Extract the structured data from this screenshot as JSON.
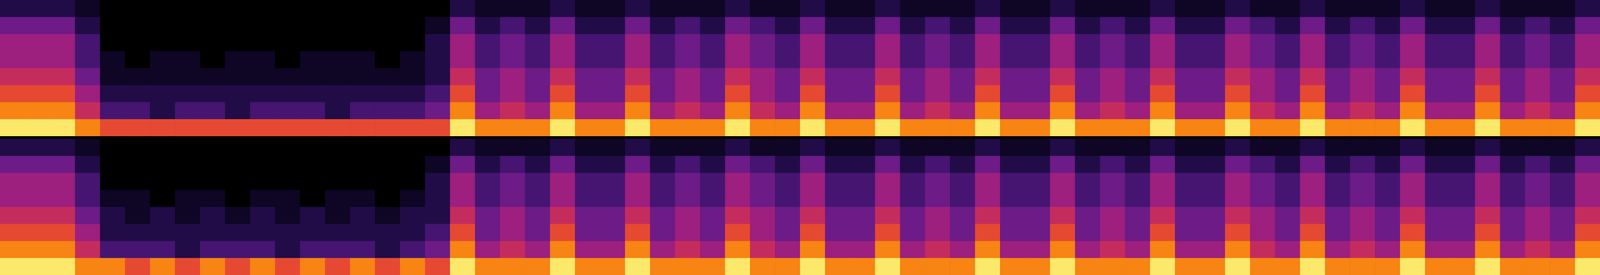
{
  "chart_data": [
    {
      "type": "heatmap",
      "tick_labels": false,
      "xlim": [
        0,
        64
      ],
      "ylim": [
        0,
        8
      ],
      "zlim": [
        0,
        9
      ],
      "cells": [
        [
          2,
          2,
          2,
          1,
          0,
          0,
          0,
          0,
          0,
          0,
          0,
          0,
          0,
          0,
          0,
          0,
          0,
          0,
          2,
          1,
          1,
          1,
          2,
          1,
          1,
          2,
          1,
          1,
          1,
          2,
          1,
          1,
          2,
          1,
          1,
          2,
          1,
          1,
          1,
          2,
          1,
          1,
          2,
          1,
          1,
          1,
          2,
          1,
          1,
          2,
          1,
          1,
          2,
          1,
          1,
          1,
          2,
          1,
          1,
          2,
          1,
          1,
          1,
          2
        ],
        [
          4,
          4,
          4,
          2,
          0,
          0,
          0,
          0,
          0,
          0,
          0,
          0,
          0,
          0,
          0,
          0,
          0,
          1,
          4,
          2,
          3,
          2,
          4,
          2,
          2,
          4,
          2,
          3,
          2,
          4,
          3,
          2,
          4,
          2,
          2,
          4,
          2,
          3,
          2,
          4,
          2,
          2,
          4,
          2,
          3,
          2,
          4,
          2,
          2,
          4,
          3,
          2,
          4,
          2,
          3,
          2,
          4,
          2,
          2,
          4,
          2,
          3,
          2,
          4
        ],
        [
          5,
          5,
          5,
          3,
          0,
          0,
          0,
          0,
          0,
          0,
          0,
          0,
          0,
          0,
          0,
          0,
          0,
          2,
          5,
          3,
          4,
          3,
          5,
          3,
          3,
          5,
          3,
          4,
          3,
          5,
          4,
          3,
          5,
          3,
          3,
          5,
          3,
          4,
          3,
          5,
          3,
          3,
          5,
          3,
          4,
          3,
          5,
          3,
          3,
          5,
          4,
          3,
          5,
          3,
          4,
          3,
          5,
          3,
          3,
          5,
          3,
          4,
          3,
          5
        ],
        [
          5,
          5,
          5,
          3,
          1,
          0,
          1,
          1,
          0,
          1,
          1,
          0,
          1,
          1,
          1,
          0,
          1,
          2,
          5,
          3,
          4,
          3,
          5,
          3,
          3,
          5,
          3,
          4,
          3,
          5,
          4,
          3,
          5,
          3,
          3,
          5,
          3,
          4,
          3,
          5,
          3,
          3,
          5,
          3,
          4,
          3,
          5,
          3,
          3,
          5,
          4,
          3,
          5,
          3,
          4,
          3,
          5,
          3,
          3,
          5,
          3,
          4,
          3,
          5
        ],
        [
          6,
          6,
          6,
          4,
          1,
          1,
          1,
          1,
          1,
          1,
          1,
          1,
          1,
          1,
          1,
          1,
          1,
          2,
          6,
          4,
          5,
          4,
          6,
          4,
          4,
          6,
          4,
          5,
          4,
          6,
          5,
          4,
          6,
          4,
          4,
          6,
          4,
          5,
          4,
          6,
          4,
          4,
          6,
          4,
          5,
          4,
          6,
          4,
          4,
          6,
          5,
          4,
          6,
          4,
          5,
          4,
          6,
          4,
          4,
          6,
          4,
          5,
          4,
          6
        ],
        [
          7,
          7,
          7,
          5,
          2,
          2,
          2,
          2,
          2,
          2,
          2,
          2,
          2,
          2,
          2,
          2,
          2,
          3,
          7,
          4,
          5,
          4,
          7,
          4,
          4,
          7,
          4,
          5,
          4,
          7,
          5,
          4,
          7,
          4,
          4,
          7,
          4,
          5,
          4,
          7,
          4,
          4,
          7,
          4,
          5,
          4,
          7,
          4,
          4,
          7,
          5,
          4,
          7,
          4,
          5,
          4,
          7,
          4,
          4,
          7,
          4,
          5,
          4,
          7
        ],
        [
          8,
          8,
          8,
          6,
          3,
          3,
          2,
          3,
          3,
          2,
          3,
          3,
          3,
          2,
          3,
          3,
          3,
          4,
          8,
          5,
          6,
          5,
          8,
          5,
          5,
          8,
          5,
          6,
          5,
          8,
          6,
          5,
          8,
          5,
          5,
          8,
          5,
          6,
          5,
          8,
          5,
          5,
          8,
          5,
          6,
          5,
          8,
          5,
          5,
          8,
          6,
          5,
          8,
          5,
          6,
          5,
          8,
          5,
          5,
          8,
          5,
          6,
          5,
          8
        ],
        [
          9,
          9,
          9,
          8,
          7,
          7,
          7,
          7,
          7,
          7,
          7,
          7,
          7,
          7,
          7,
          7,
          7,
          7,
          9,
          8,
          8,
          8,
          9,
          8,
          8,
          9,
          8,
          8,
          8,
          9,
          8,
          8,
          9,
          8,
          8,
          9,
          8,
          8,
          8,
          9,
          8,
          8,
          9,
          8,
          8,
          8,
          9,
          8,
          8,
          9,
          8,
          8,
          9,
          8,
          8,
          8,
          9,
          8,
          8,
          9,
          8,
          8,
          8,
          9
        ]
      ]
    },
    {
      "type": "heatmap",
      "tick_labels": false,
      "xlim": [
        0,
        64
      ],
      "ylim": [
        0,
        8
      ],
      "zlim": [
        0,
        9
      ],
      "cells": [
        [
          2,
          2,
          2,
          1,
          0,
          0,
          0,
          0,
          0,
          0,
          0,
          0,
          0,
          0,
          0,
          0,
          0,
          0,
          2,
          1,
          1,
          1,
          2,
          1,
          1,
          2,
          1,
          1,
          1,
          2,
          1,
          1,
          2,
          1,
          1,
          2,
          1,
          1,
          1,
          2,
          1,
          1,
          2,
          1,
          1,
          1,
          2,
          1,
          1,
          2,
          1,
          1,
          2,
          1,
          1,
          1,
          2,
          1,
          1,
          2,
          1,
          1,
          1,
          2
        ],
        [
          4,
          4,
          4,
          2,
          0,
          0,
          0,
          0,
          0,
          0,
          0,
          0,
          0,
          0,
          0,
          0,
          0,
          1,
          4,
          2,
          3,
          2,
          4,
          2,
          2,
          4,
          2,
          3,
          2,
          4,
          3,
          2,
          4,
          2,
          2,
          4,
          2,
          3,
          2,
          4,
          2,
          2,
          4,
          2,
          3,
          2,
          4,
          2,
          2,
          4,
          3,
          2,
          4,
          2,
          3,
          2,
          4,
          2,
          2,
          4,
          2,
          3,
          2,
          4
        ],
        [
          5,
          5,
          5,
          3,
          0,
          0,
          0,
          0,
          0,
          0,
          0,
          0,
          0,
          0,
          0,
          0,
          0,
          2,
          5,
          3,
          4,
          3,
          5,
          3,
          3,
          5,
          3,
          4,
          3,
          5,
          4,
          3,
          5,
          3,
          3,
          5,
          3,
          4,
          3,
          5,
          3,
          3,
          5,
          3,
          4,
          3,
          5,
          3,
          3,
          5,
          4,
          3,
          5,
          3,
          4,
          3,
          5,
          3,
          3,
          5,
          3,
          4,
          3,
          5
        ],
        [
          5,
          5,
          5,
          3,
          1,
          1,
          0,
          1,
          1,
          0,
          1,
          1,
          0,
          1,
          1,
          0,
          1,
          2,
          5,
          3,
          4,
          3,
          5,
          3,
          3,
          5,
          3,
          4,
          3,
          5,
          4,
          3,
          5,
          3,
          3,
          5,
          3,
          4,
          3,
          5,
          3,
          3,
          5,
          3,
          4,
          3,
          5,
          3,
          3,
          5,
          4,
          3,
          5,
          3,
          4,
          3,
          5,
          3,
          3,
          5,
          3,
          4,
          3,
          5
        ],
        [
          6,
          6,
          6,
          4,
          2,
          1,
          2,
          1,
          2,
          1,
          2,
          1,
          2,
          1,
          2,
          1,
          2,
          2,
          6,
          4,
          5,
          4,
          6,
          4,
          4,
          6,
          4,
          5,
          4,
          6,
          5,
          4,
          6,
          4,
          4,
          6,
          4,
          5,
          4,
          6,
          4,
          4,
          6,
          4,
          5,
          4,
          6,
          4,
          4,
          6,
          5,
          4,
          6,
          4,
          5,
          4,
          6,
          4,
          4,
          6,
          4,
          5,
          4,
          6
        ],
        [
          7,
          7,
          7,
          5,
          2,
          2,
          2,
          2,
          2,
          2,
          2,
          2,
          2,
          2,
          2,
          2,
          2,
          3,
          7,
          4,
          5,
          4,
          7,
          4,
          4,
          7,
          4,
          5,
          4,
          7,
          5,
          4,
          7,
          4,
          4,
          7,
          4,
          5,
          4,
          7,
          4,
          4,
          7,
          4,
          5,
          4,
          7,
          4,
          4,
          7,
          5,
          4,
          7,
          4,
          5,
          4,
          7,
          4,
          4,
          7,
          4,
          5,
          4,
          7
        ],
        [
          8,
          8,
          8,
          6,
          3,
          3,
          3,
          2,
          3,
          3,
          3,
          2,
          3,
          3,
          3,
          2,
          3,
          4,
          8,
          5,
          6,
          5,
          8,
          5,
          5,
          8,
          5,
          6,
          5,
          8,
          6,
          5,
          8,
          5,
          5,
          8,
          5,
          6,
          5,
          8,
          5,
          5,
          8,
          5,
          6,
          5,
          8,
          5,
          5,
          8,
          6,
          5,
          8,
          5,
          6,
          5,
          8,
          5,
          5,
          8,
          5,
          6,
          5,
          8
        ],
        [
          9,
          9,
          9,
          8,
          8,
          7,
          8,
          7,
          8,
          7,
          8,
          7,
          8,
          7,
          8,
          7,
          8,
          7,
          9,
          8,
          8,
          8,
          9,
          8,
          8,
          9,
          8,
          8,
          8,
          9,
          8,
          8,
          9,
          8,
          8,
          9,
          8,
          8,
          8,
          9,
          8,
          8,
          9,
          8,
          8,
          8,
          9,
          8,
          8,
          9,
          8,
          8,
          9,
          8,
          8,
          8,
          9,
          8,
          8,
          9,
          8,
          8,
          8,
          9
        ]
      ]
    }
  ]
}
